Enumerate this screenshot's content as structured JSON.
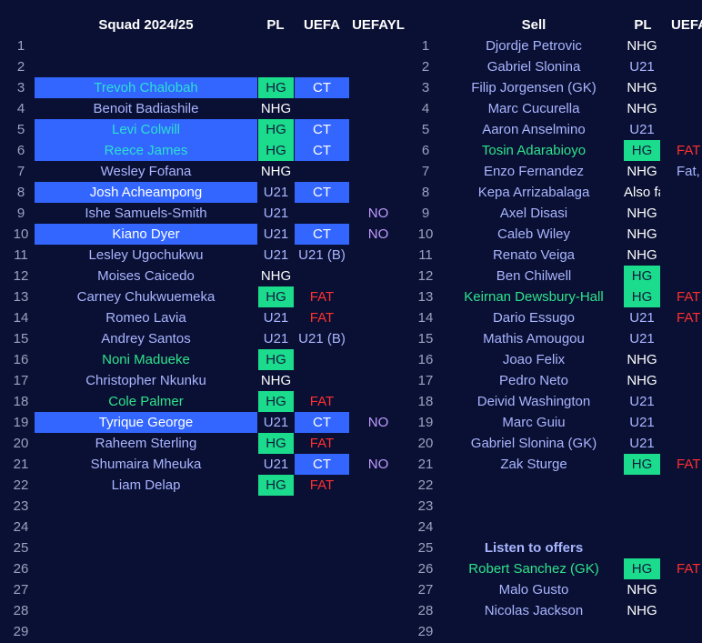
{
  "left": {
    "headers": {
      "title": "Squad 2024/25",
      "pl": "PL",
      "uefa": "UEFA",
      "yl": "UEFAYL"
    },
    "rows": [
      {
        "n": "1",
        "name": "",
        "pl": "",
        "uefa": "",
        "yl": ""
      },
      {
        "n": "2",
        "name": "",
        "pl": "",
        "uefa": "",
        "yl": ""
      },
      {
        "n": "3",
        "name": "Trevoh Chalobah",
        "pl": "HG",
        "uefa": "CT",
        "yl": "",
        "row": "blue",
        "nc": "cyan"
      },
      {
        "n": "4",
        "name": "Benoit Badiashile",
        "pl": "NHG",
        "uefa": "",
        "yl": ""
      },
      {
        "n": "5",
        "name": "Levi Colwill",
        "pl": "HG",
        "uefa": "CT",
        "yl": "",
        "row": "blue",
        "nc": "cyan"
      },
      {
        "n": "6",
        "name": "Reece James",
        "pl": "HG",
        "uefa": "CT",
        "yl": "",
        "row": "blue",
        "nc": "cyan"
      },
      {
        "n": "7",
        "name": "Wesley Fofana",
        "pl": "NHG",
        "uefa": "",
        "yl": ""
      },
      {
        "n": "8",
        "name": "Josh Acheampong",
        "pl": "U21",
        "uefa": "CT",
        "yl": "",
        "row": "blue",
        "nc": "white"
      },
      {
        "n": "9",
        "name": "Ishe Samuels-Smith",
        "pl": "U21",
        "uefa": "",
        "yl": "NO"
      },
      {
        "n": "10",
        "name": "Kiano Dyer",
        "pl": "U21",
        "uefa": "CT",
        "yl": "NO",
        "row": "blue",
        "nc": "white"
      },
      {
        "n": "11",
        "name": "Lesley Ugochukwu",
        "pl": "U21",
        "uefa": "U21 (B)",
        "yl": ""
      },
      {
        "n": "12",
        "name": "Moises Caicedo",
        "pl": "NHG",
        "uefa": "",
        "yl": ""
      },
      {
        "n": "13",
        "name": "Carney Chukwuemeka",
        "pl": "HG",
        "uefa": "FAT",
        "yl": ""
      },
      {
        "n": "14",
        "name": "Romeo Lavia",
        "pl": "U21",
        "uefa": "FAT",
        "yl": ""
      },
      {
        "n": "15",
        "name": "Andrey Santos",
        "pl": "U21",
        "uefa": "U21 (B)",
        "yl": ""
      },
      {
        "n": "16",
        "name": "Noni Madueke",
        "pl": "HG",
        "uefa": "",
        "yl": "",
        "nc": "green"
      },
      {
        "n": "17",
        "name": "Christopher Nkunku",
        "pl": "NHG",
        "uefa": "",
        "yl": ""
      },
      {
        "n": "18",
        "name": "Cole Palmer",
        "pl": "HG",
        "uefa": "FAT",
        "yl": "",
        "nc": "green"
      },
      {
        "n": "19",
        "name": "Tyrique George",
        "pl": "U21",
        "uefa": "CT",
        "yl": "NO",
        "row": "blue",
        "nc": "white"
      },
      {
        "n": "20",
        "name": "Raheem Sterling",
        "pl": "HG",
        "uefa": "FAT",
        "yl": ""
      },
      {
        "n": "21",
        "name": "Shumaira Mheuka",
        "pl": "U21",
        "uefa": "CT",
        "yl": "NO",
        "uefaBlue": true
      },
      {
        "n": "22",
        "name": "Liam Delap",
        "pl": "HG",
        "uefa": "FAT",
        "yl": ""
      },
      {
        "n": "23",
        "name": "",
        "pl": "",
        "uefa": "",
        "yl": ""
      },
      {
        "n": "24",
        "name": "",
        "pl": "",
        "uefa": "",
        "yl": ""
      },
      {
        "n": "25",
        "name": "",
        "pl": "",
        "uefa": "",
        "yl": ""
      },
      {
        "n": "26",
        "name": "",
        "pl": "",
        "uefa": "",
        "yl": ""
      },
      {
        "n": "27",
        "name": "",
        "pl": "",
        "uefa": "",
        "yl": ""
      },
      {
        "n": "28",
        "name": "",
        "pl": "",
        "uefa": "",
        "yl": ""
      },
      {
        "n": "29",
        "name": "",
        "pl": "",
        "uefa": "",
        "yl": ""
      }
    ]
  },
  "right": {
    "headers": {
      "title": "Sell",
      "pl": "PL",
      "uefa": "UEFA"
    },
    "rows": [
      {
        "n": "1",
        "name": "Djordje Petrovic",
        "pl": "NHG",
        "uefa": ""
      },
      {
        "n": "2",
        "name": "Gabriel Slonina",
        "pl": "U21",
        "uefa": ""
      },
      {
        "n": "3",
        "name": "Filip Jorgensen (GK)",
        "pl": "NHG",
        "uefa": ""
      },
      {
        "n": "4",
        "name": "Marc Cucurella",
        "pl": "NHG",
        "uefa": ""
      },
      {
        "n": "5",
        "name": "Aaron Anselmino",
        "pl": "U21",
        "uefa": ""
      },
      {
        "n": "6",
        "name": "Tosin Adarabioyo",
        "pl": "HG",
        "uefa": "FAT",
        "nc": "green"
      },
      {
        "n": "7",
        "name": "Enzo Fernandez",
        "pl": "NHG",
        "uefa": "Fat, ",
        "uc": "periw"
      },
      {
        "n": "8",
        "name": "Kepa Arrizabalaga",
        "pl": "Also fat",
        "uefa": ""
      },
      {
        "n": "9",
        "name": "Axel Disasi",
        "pl": "NHG",
        "uefa": ""
      },
      {
        "n": "10",
        "name": "Caleb Wiley",
        "pl": "NHG",
        "uefa": ""
      },
      {
        "n": "11",
        "name": "Renato Veiga",
        "pl": "NHG",
        "uefa": ""
      },
      {
        "n": "12",
        "name": "Ben Chilwell",
        "pl": "HG",
        "uefa": ""
      },
      {
        "n": "13",
        "name": "Keirnan Dewsbury-Hall",
        "pl": "HG",
        "uefa": "FAT",
        "nc": "green"
      },
      {
        "n": "14",
        "name": "Dario Essugo",
        "pl": "U21",
        "uefa": "FAT"
      },
      {
        "n": "15",
        "name": "Mathis Amougou",
        "pl": "U21",
        "uefa": ""
      },
      {
        "n": "16",
        "name": "Joao Felix",
        "pl": "NHG",
        "uefa": ""
      },
      {
        "n": "17",
        "name": "Pedro Neto",
        "pl": "NHG",
        "uefa": ""
      },
      {
        "n": "18",
        "name": "Deivid Washington",
        "pl": "U21",
        "uefa": ""
      },
      {
        "n": "19",
        "name": "Marc Guiu",
        "pl": "U21",
        "uefa": ""
      },
      {
        "n": "20",
        "name": "Gabriel Slonina (GK)",
        "pl": "U21",
        "uefa": ""
      },
      {
        "n": "21",
        "name": "Zak Sturge",
        "pl": "HG",
        "uefa": "FAT"
      },
      {
        "n": "22",
        "name": "",
        "pl": "",
        "uefa": ""
      },
      {
        "n": "23",
        "name": "",
        "pl": "",
        "uefa": ""
      },
      {
        "n": "24",
        "name": "",
        "pl": "",
        "uefa": ""
      },
      {
        "n": "25",
        "name": "Listen to offers",
        "pl": "",
        "uefa": "",
        "bold": true
      },
      {
        "n": "26",
        "name": "Robert Sanchez  (GK)",
        "pl": "HG",
        "uefa": "FAT",
        "nc": "green"
      },
      {
        "n": "27",
        "name": "Malo Gusto",
        "pl": "NHG",
        "uefa": ""
      },
      {
        "n": "28",
        "name": "Nicolas Jackson",
        "pl": "NHG",
        "uefa": ""
      },
      {
        "n": "29",
        "name": "",
        "pl": "",
        "uefa": ""
      }
    ]
  },
  "colors": {
    "background": "#0a1033",
    "blue": "#3366ff",
    "green": "#1bdc8c",
    "red": "#ff3030",
    "name": "#a9b5ff"
  }
}
